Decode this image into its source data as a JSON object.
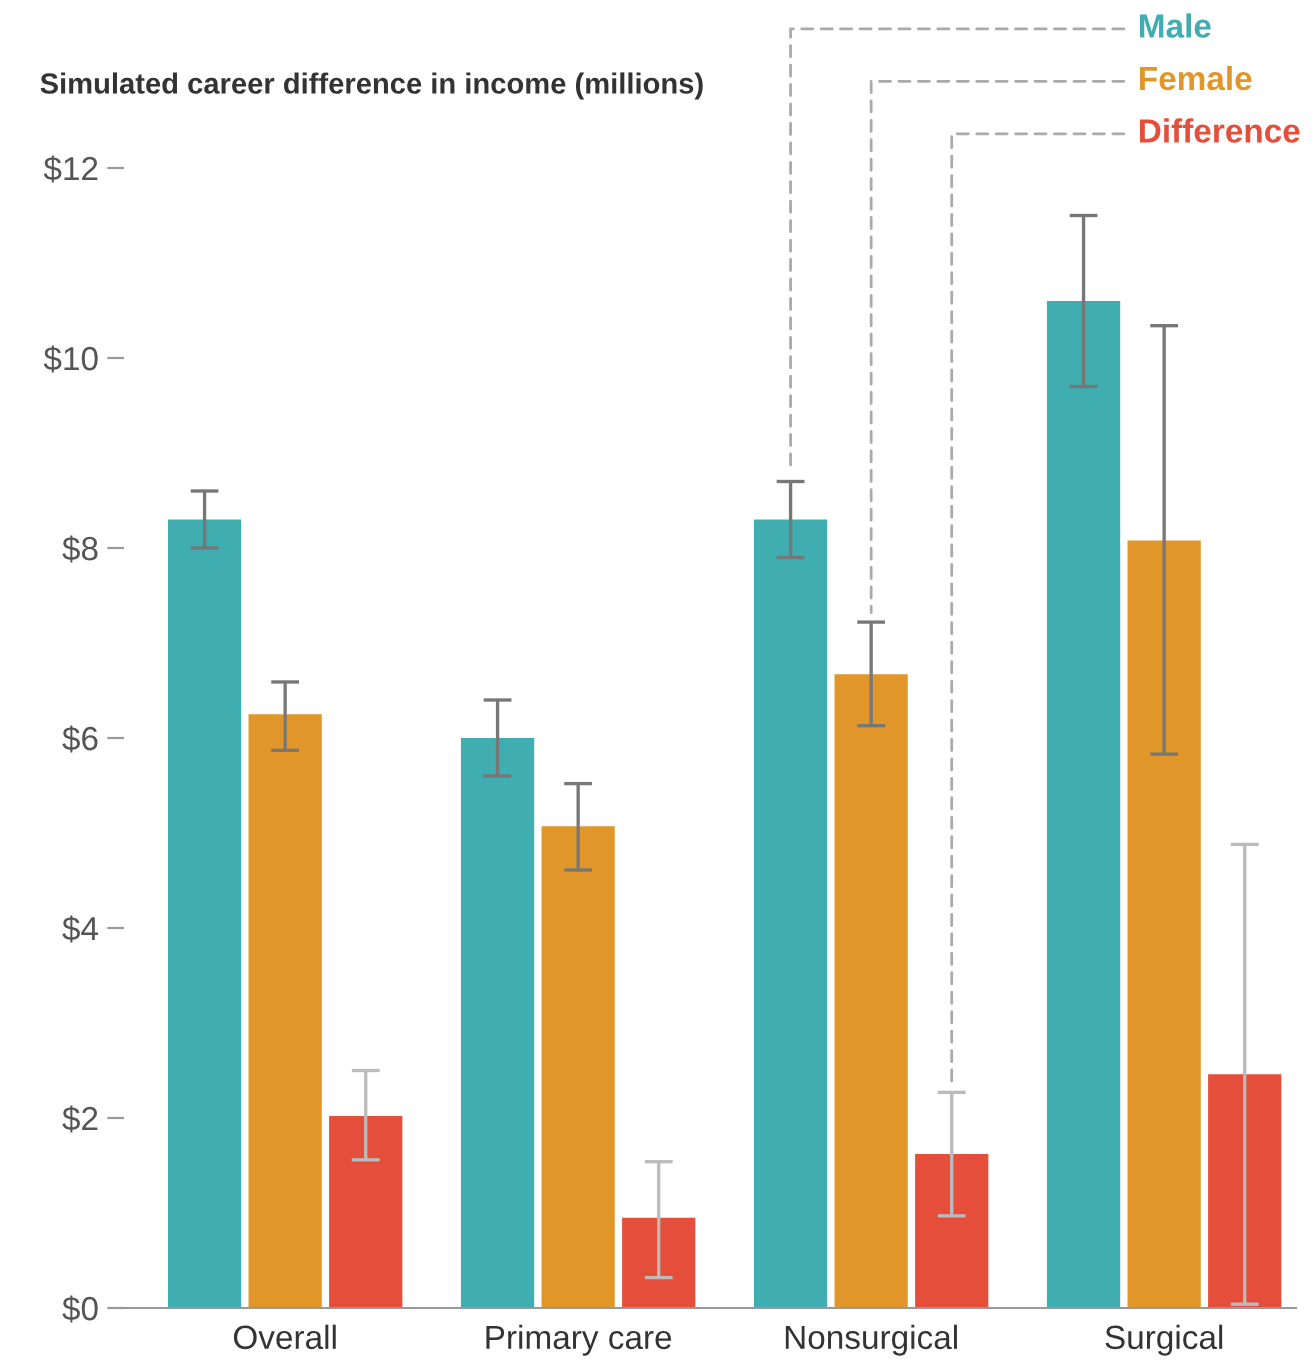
{
  "chart_data": {
    "type": "bar",
    "ylabel": "Simulated career difference in income (millions)",
    "categories": [
      "Overall",
      "Primary care",
      "Nonsurgical",
      "Surgical"
    ],
    "series": [
      {
        "name": "Male",
        "color": "#40adb0",
        "values": [
          8.3,
          6.0,
          8.3,
          10.6
        ],
        "errors": [
          [
            8.0,
            8.6
          ],
          [
            5.6,
            6.4
          ],
          [
            7.9,
            8.7
          ],
          [
            9.7,
            11.5
          ]
        ]
      },
      {
        "name": "Female",
        "color": "#e09628",
        "values": [
          6.25,
          5.07,
          6.67,
          8.08
        ],
        "errors": [
          [
            5.87,
            6.59
          ],
          [
            4.61,
            5.52
          ],
          [
            6.13,
            7.22
          ],
          [
            5.83,
            10.34
          ]
        ]
      },
      {
        "name": "Difference",
        "color": "#e44e3a",
        "values": [
          2.02,
          0.95,
          1.62,
          2.46
        ],
        "errors": [
          [
            1.56,
            2.5
          ],
          [
            0.32,
            1.54
          ],
          [
            0.97,
            2.27
          ],
          [
            0.04,
            4.88
          ]
        ]
      }
    ],
    "ylim": [
      0,
      12
    ],
    "yticks": [
      {
        "value": 0,
        "label": "$0"
      },
      {
        "value": 2,
        "label": "$2"
      },
      {
        "value": 4,
        "label": "$4"
      },
      {
        "value": 6,
        "label": "$6"
      },
      {
        "value": 8,
        "label": "$8"
      },
      {
        "value": 10,
        "label": "$10"
      },
      {
        "value": 12,
        "label": "$12"
      }
    ],
    "legend": "top right",
    "grid": false
  }
}
